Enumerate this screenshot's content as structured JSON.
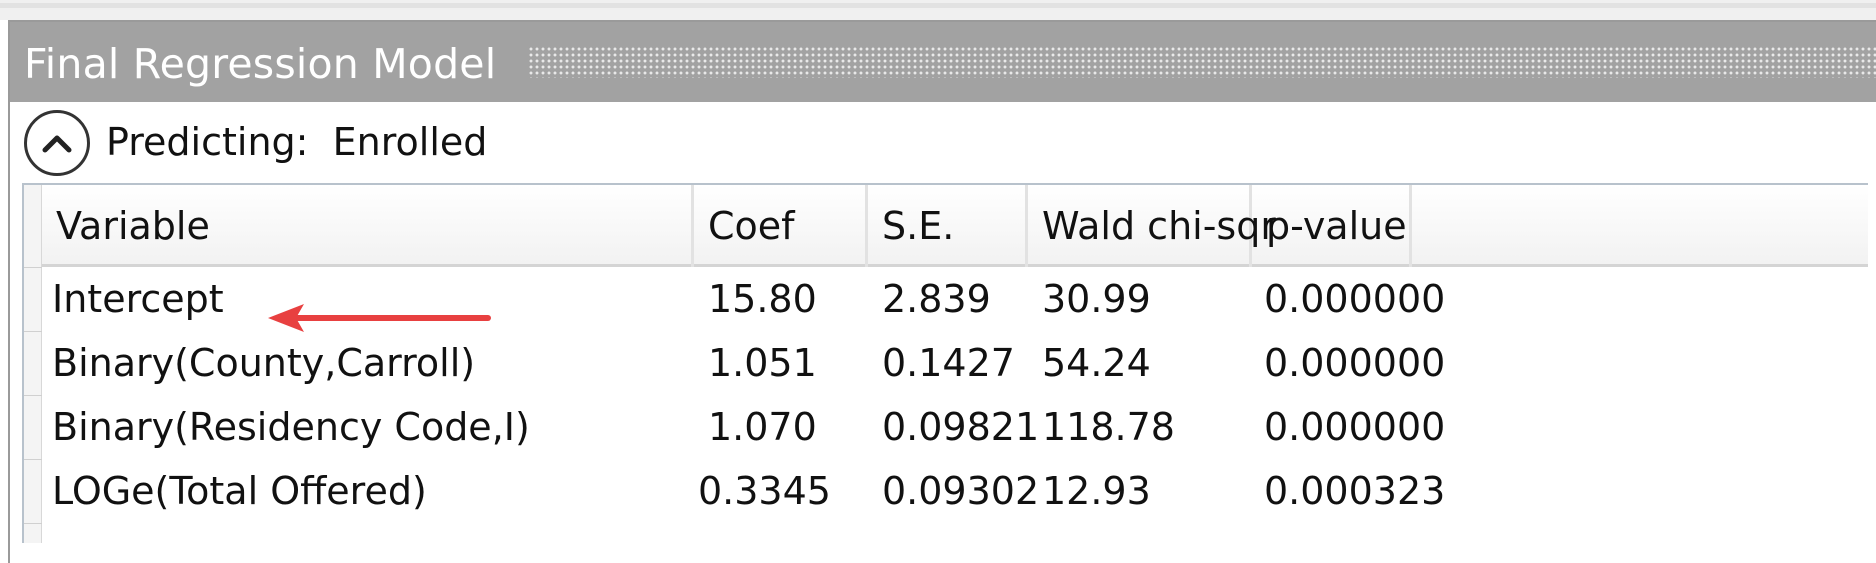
{
  "panel": {
    "title": "Final Regression Model"
  },
  "section": {
    "predicting_label": "Predicting:",
    "predicting_value": "Enrolled",
    "toggle_icon": "chevron-up-icon"
  },
  "table": {
    "columns": [
      "Variable",
      "Coef",
      "S.E.",
      "Wald chi-sqr",
      "p-value"
    ],
    "rows": [
      {
        "variable": "Intercept",
        "coef": "15.80",
        "se": "2.839",
        "wald": "30.99",
        "p": "0.000000"
      },
      {
        "variable": "Binary(County,Carroll)",
        "coef": "1.051",
        "se": "0.1427",
        "wald": "54.24",
        "p": "0.000000"
      },
      {
        "variable": "Binary(Residency Code,I)",
        "coef": "1.070",
        "se": "0.09821",
        "wald": "118.78",
        "p": "0.000000"
      },
      {
        "variable": "LOGe(Total Offered)",
        "coef": "0.3345",
        "se": "0.09302",
        "wald": "12.93",
        "p": "0.000323"
      }
    ]
  },
  "annotation": {
    "arrow_color": "#e84040",
    "arrow_icon": "red-arrow-left-icon"
  }
}
